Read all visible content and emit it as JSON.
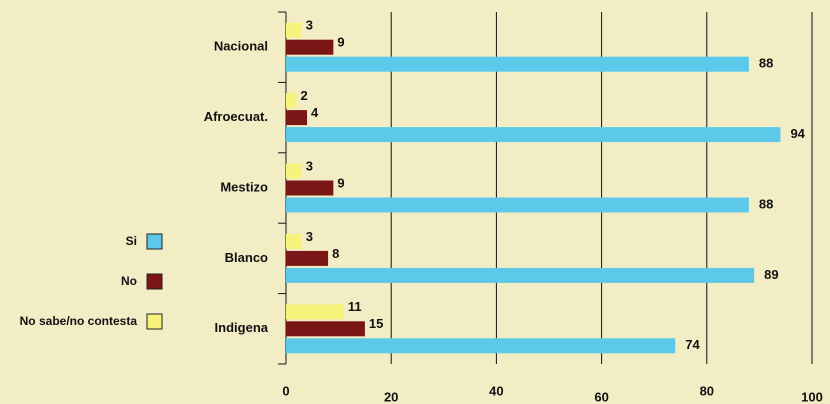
{
  "chart_data": {
    "type": "bar",
    "orientation": "horizontal",
    "categories": [
      "Nacional",
      "Afroecuat.",
      "Mestizo",
      "Blanco",
      "Indigena"
    ],
    "series": [
      {
        "name": "Si",
        "color": "#5cc8ea",
        "values": [
          88,
          94,
          88,
          89,
          74
        ]
      },
      {
        "name": "No",
        "color": "#7a1616",
        "values": [
          9,
          4,
          9,
          8,
          15
        ]
      },
      {
        "name": "No sabe/no contesta",
        "color": "#f6f27c",
        "values": [
          3,
          2,
          3,
          3,
          11
        ]
      }
    ],
    "xlim": [
      0,
      100
    ],
    "xticks": [
      0,
      20,
      40,
      60,
      80,
      100
    ],
    "grid": true
  }
}
